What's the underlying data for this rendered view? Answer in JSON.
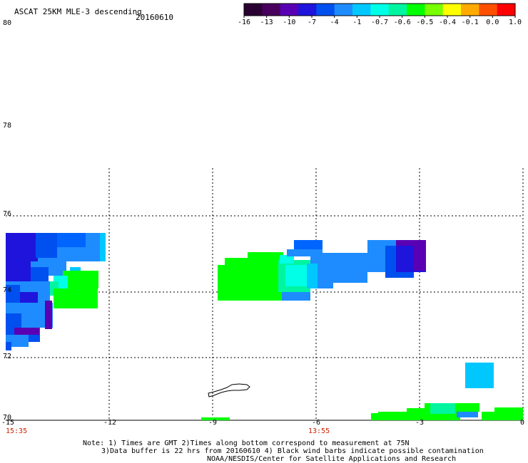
{
  "title": "ASCAT 25KM MLE-3 descending",
  "date": "20160610",
  "colorbar": {
    "colors": [
      "#2a0033",
      "#48005c",
      "#5a00b4",
      "#1e14dc",
      "#0050f0",
      "#1e8cff",
      "#00c8ff",
      "#00ffe6",
      "#00f5a0",
      "#00ff00",
      "#78ff00",
      "#ffff00",
      "#ffaa00",
      "#ff5000",
      "#ff0000"
    ],
    "ticks": [
      "-16",
      "-13",
      "-10",
      "-7",
      "-4",
      "-1",
      "-0.7",
      "-0.6",
      "-0.5",
      "-0.4",
      "-0.1",
      "0.0",
      "1.0"
    ]
  },
  "lat_labels": [
    "80",
    "78",
    "76",
    "74",
    "72",
    "70"
  ],
  "lon_labels": [
    "-15",
    "-12",
    "-9",
    "-6",
    "-3",
    "0"
  ],
  "times": [
    "15:35",
    "13:55"
  ],
  "notes": [
    "Note: 1) Times are GMT 2)Times along bottom correspond to measurement at 75N",
    "3)Data buffer is 22 hrs from 20160610 4) Black wind barbs indicate possible contamination",
    "NOAA/NESDIS/Center for Satellite Applications and Research"
  ],
  "grid": {
    "lon_range": [
      -15,
      0
    ],
    "lat_range": [
      70,
      80
    ]
  }
}
